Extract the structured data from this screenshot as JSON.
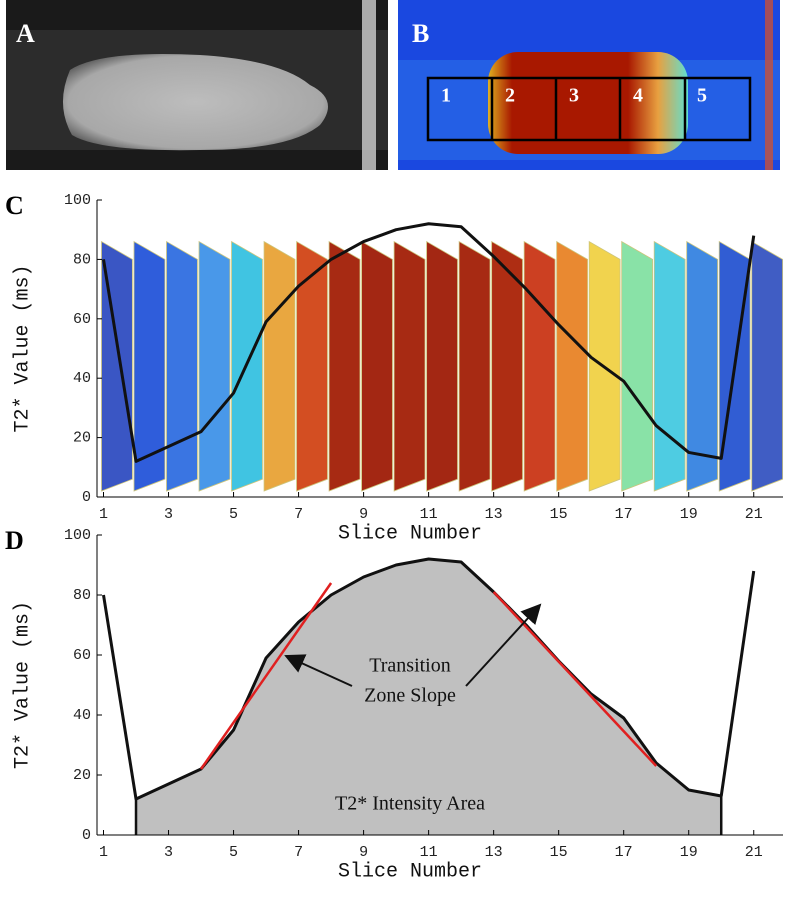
{
  "images": [
    {
      "label": "A"
    },
    {
      "label": "B",
      "regions": [
        "1",
        "2",
        "3",
        "4",
        "5"
      ]
    }
  ],
  "chart_data": [
    {
      "type": "line",
      "label": "C",
      "xlabel": "Slice Number",
      "ylabel": "T2* Value (ms)",
      "x": [
        1,
        2,
        3,
        4,
        5,
        6,
        7,
        8,
        9,
        10,
        11,
        12,
        13,
        14,
        15,
        16,
        17,
        18,
        19,
        20,
        21
      ],
      "values": [
        80,
        12,
        17,
        22,
        35,
        59,
        71,
        80,
        86,
        90,
        92,
        91,
        81,
        70,
        58,
        47,
        39,
        24,
        15,
        13,
        88
      ],
      "color": "#111111",
      "slice_colors": [
        "#2a48c0",
        "#1e50d8",
        "#2a6ae0",
        "#3a90e8",
        "#30c0e0",
        "#e8a030",
        "#d04010",
        "#a01800",
        "#9c1500",
        "#a01800",
        "#9c1500",
        "#a01800",
        "#a81c00",
        "#c83010",
        "#e88020",
        "#f0d040",
        "#80e0a0",
        "#40c8e0",
        "#3080e0",
        "#2050d0",
        "#3050c0"
      ],
      "xlim": [
        0.8,
        21.9
      ],
      "ylim": [
        0,
        100
      ],
      "xticks": [
        1,
        3,
        5,
        7,
        9,
        11,
        13,
        15,
        17,
        19,
        21
      ],
      "yticks": [
        0,
        20,
        40,
        60,
        80,
        100
      ]
    },
    {
      "type": "area",
      "label": "D",
      "xlabel": "Slice Number",
      "ylabel": "T2* Value (ms)",
      "x": [
        1,
        2,
        3,
        4,
        5,
        6,
        7,
        8,
        9,
        10,
        11,
        12,
        13,
        14,
        15,
        16,
        17,
        18,
        19,
        20,
        21
      ],
      "values": [
        80,
        12,
        17,
        22,
        35,
        59,
        71,
        80,
        86,
        90,
        92,
        91,
        81,
        70,
        58,
        47,
        39,
        24,
        15,
        13,
        88
      ],
      "color": "#111111",
      "fill_color": "#c0c0c0",
      "fill_xlim": [
        2,
        20
      ],
      "slope_lines": [
        {
          "x": [
            4,
            8
          ],
          "y": [
            22,
            84
          ]
        },
        {
          "x": [
            13,
            18
          ],
          "y": [
            81,
            23
          ]
        }
      ],
      "slope_color": "#e02020",
      "annotations": [
        "Transition",
        "Zone Slope",
        "T2* Intensity Area"
      ],
      "xlim": [
        0.8,
        21.9
      ],
      "ylim": [
        0,
        100
      ],
      "xticks": [
        1,
        3,
        5,
        7,
        9,
        11,
        13,
        15,
        17,
        19,
        21
      ],
      "yticks": [
        0,
        20,
        40,
        60,
        80,
        100
      ]
    }
  ]
}
